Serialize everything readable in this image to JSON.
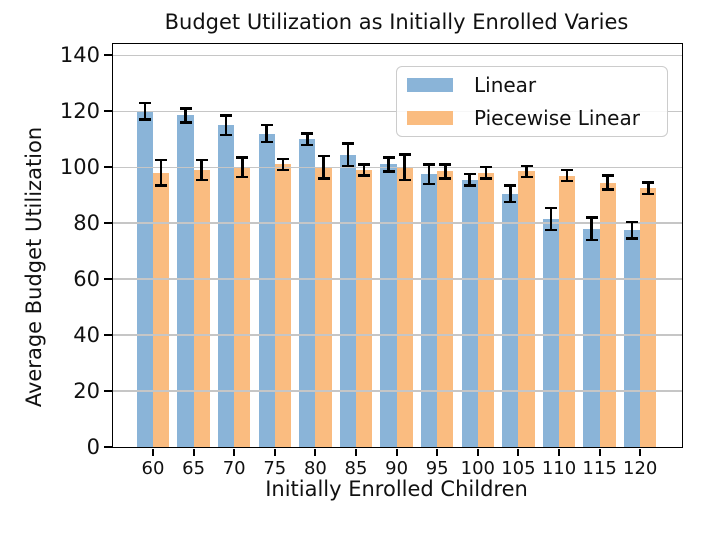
{
  "chart_data": {
    "type": "bar",
    "title": "Budget Utilization as Initially Enrolled Varies",
    "xlabel": "Initially Enrolled Children",
    "ylabel": "Average Budget Utilization",
    "categories": [
      "60",
      "65",
      "70",
      "75",
      "80",
      "85",
      "90",
      "95",
      "100",
      "105",
      "110",
      "115",
      "120"
    ],
    "y_ticks": [
      0,
      20,
      40,
      60,
      80,
      100,
      120,
      140
    ],
    "ylim": [
      0,
      144
    ],
    "grid": true,
    "grid_axis": "y",
    "legend_position": "upper right",
    "error_bar_color": "#000000",
    "series": [
      {
        "name": "Linear",
        "color": "#8ab4d8",
        "values": [
          120,
          118.5,
          115,
          112,
          110,
          104.5,
          101,
          97.5,
          95.5,
          90.5,
          81.5,
          78,
          77.5
        ],
        "errors": [
          3,
          2.5,
          3.5,
          3,
          2,
          4,
          2.5,
          3.5,
          2,
          3,
          4,
          4,
          3
        ]
      },
      {
        "name": "Piecewise Linear",
        "color": "#fabc80",
        "values": [
          98,
          99,
          100,
          101,
          100,
          99,
          100,
          98.5,
          98,
          98.5,
          97,
          94.5,
          92.5
        ],
        "errors": [
          4.5,
          3.5,
          3.5,
          2,
          4,
          2,
          4.5,
          2.5,
          2,
          2,
          2,
          2.5,
          2
        ]
      }
    ]
  }
}
